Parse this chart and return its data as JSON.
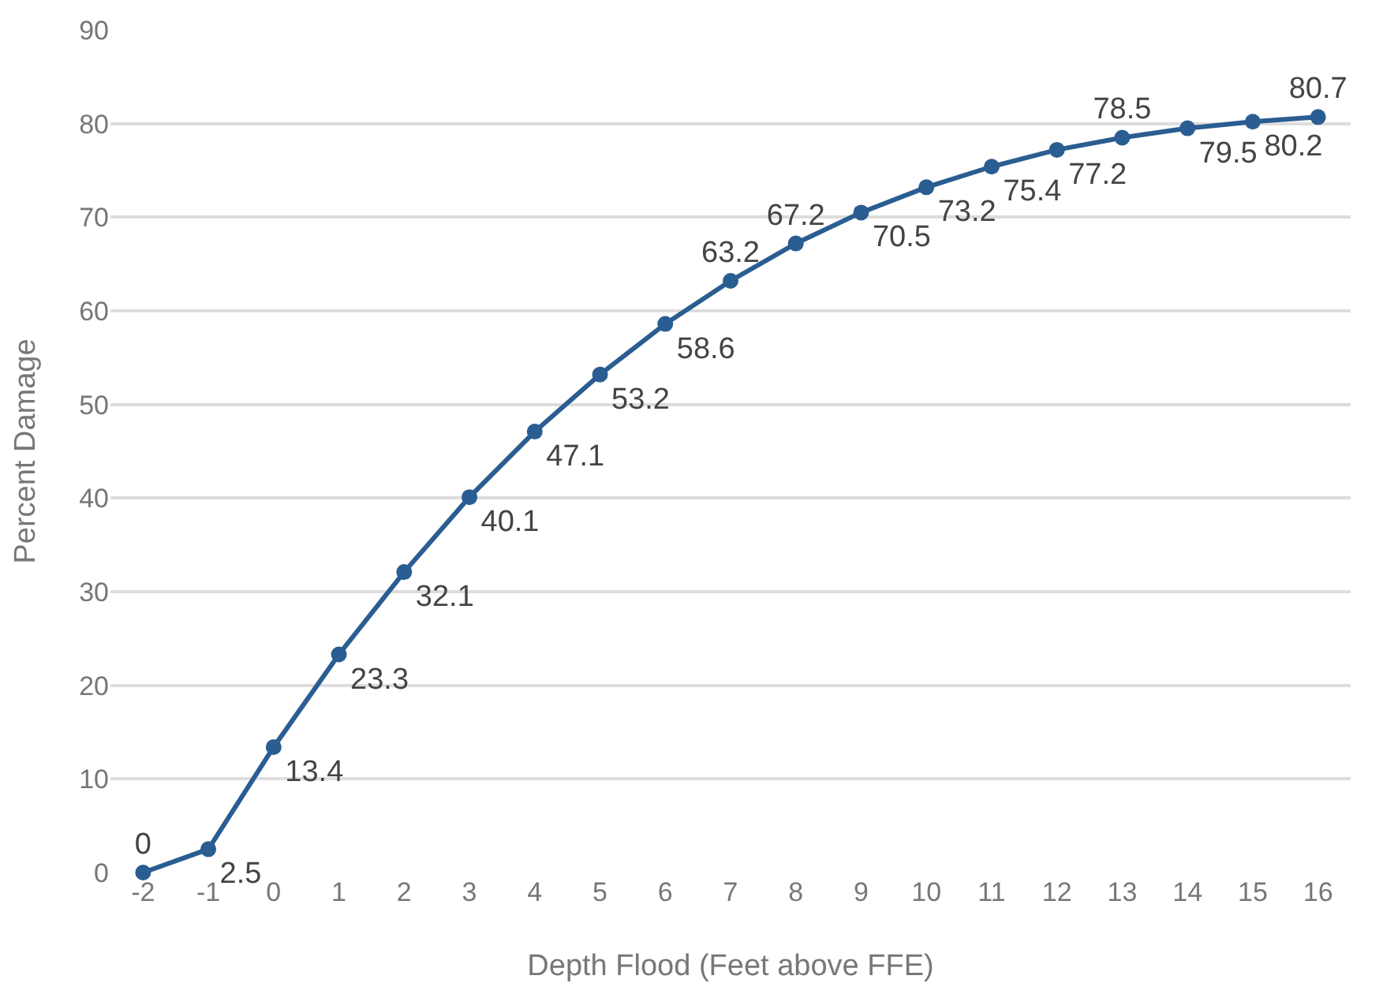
{
  "chart_data": {
    "type": "line",
    "xlabel": "Depth Flood (Feet above FFE)",
    "ylabel": "Percent Damage",
    "x": [
      -2,
      -1,
      0,
      1,
      2,
      3,
      4,
      5,
      6,
      7,
      8,
      9,
      10,
      11,
      12,
      13,
      14,
      15,
      16
    ],
    "series": [
      {
        "color": "#2a5d91",
        "values": [
          0,
          2.5,
          13.4,
          23.3,
          32.1,
          40.1,
          47.1,
          53.2,
          58.6,
          63.2,
          67.2,
          70.5,
          73.2,
          75.4,
          77.2,
          78.5,
          79.5,
          80.2,
          80.7
        ]
      }
    ],
    "xlim": [
      -2.5,
      16.5
    ],
    "xticks": [
      -2,
      -1,
      0,
      1,
      2,
      3,
      4,
      5,
      6,
      7,
      8,
      9,
      10,
      11,
      12,
      13,
      14,
      15,
      16
    ],
    "ylim": [
      0,
      90
    ],
    "yticks": [
      0,
      10,
      20,
      30,
      40,
      50,
      60,
      70,
      80,
      90
    ],
    "grid": "y",
    "marker": "circle",
    "line_style": "solid",
    "data_labels": true
  }
}
